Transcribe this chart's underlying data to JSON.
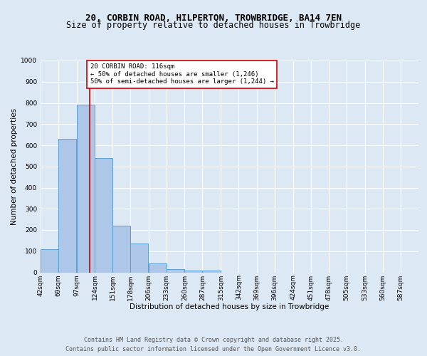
{
  "title_line1": "20, CORBIN ROAD, HILPERTON, TROWBRIDGE, BA14 7EN",
  "title_line2": "Size of property relative to detached houses in Trowbridge",
  "xlabel": "Distribution of detached houses by size in Trowbridge",
  "ylabel": "Number of detached properties",
  "bin_edges": [
    42,
    69,
    97,
    124,
    151,
    178,
    206,
    233,
    260,
    287,
    315,
    342,
    369,
    396,
    424,
    451,
    478,
    505,
    533,
    560,
    587
  ],
  "bar_heights": [
    110,
    630,
    790,
    540,
    220,
    135,
    42,
    15,
    8,
    10,
    0,
    0,
    0,
    0,
    0,
    0,
    0,
    0,
    0,
    0
  ],
  "bar_color": "#aec6e8",
  "bar_edge_color": "#5a9fd4",
  "background_color": "#dde8f5",
  "grid_color": "#ffffff",
  "vline_x": 116,
  "vline_color": "#cc0000",
  "annotation_text": "20 CORBIN ROAD: 116sqm\n← 50% of detached houses are smaller (1,246)\n50% of semi-detached houses are larger (1,244) →",
  "annotation_box_color": "#ffffff",
  "annotation_box_edge": "#cc0000",
  "ylim": [
    0,
    1000
  ],
  "yticks": [
    0,
    100,
    200,
    300,
    400,
    500,
    600,
    700,
    800,
    900,
    1000
  ],
  "footer_line1": "Contains HM Land Registry data © Crown copyright and database right 2025.",
  "footer_line2": "Contains public sector information licensed under the Open Government Licence v3.0.",
  "title_fontsize": 9,
  "subtitle_fontsize": 8.5,
  "axis_label_fontsize": 7.5,
  "tick_fontsize": 6.5,
  "annotation_fontsize": 6.5,
  "footer_fontsize": 6
}
